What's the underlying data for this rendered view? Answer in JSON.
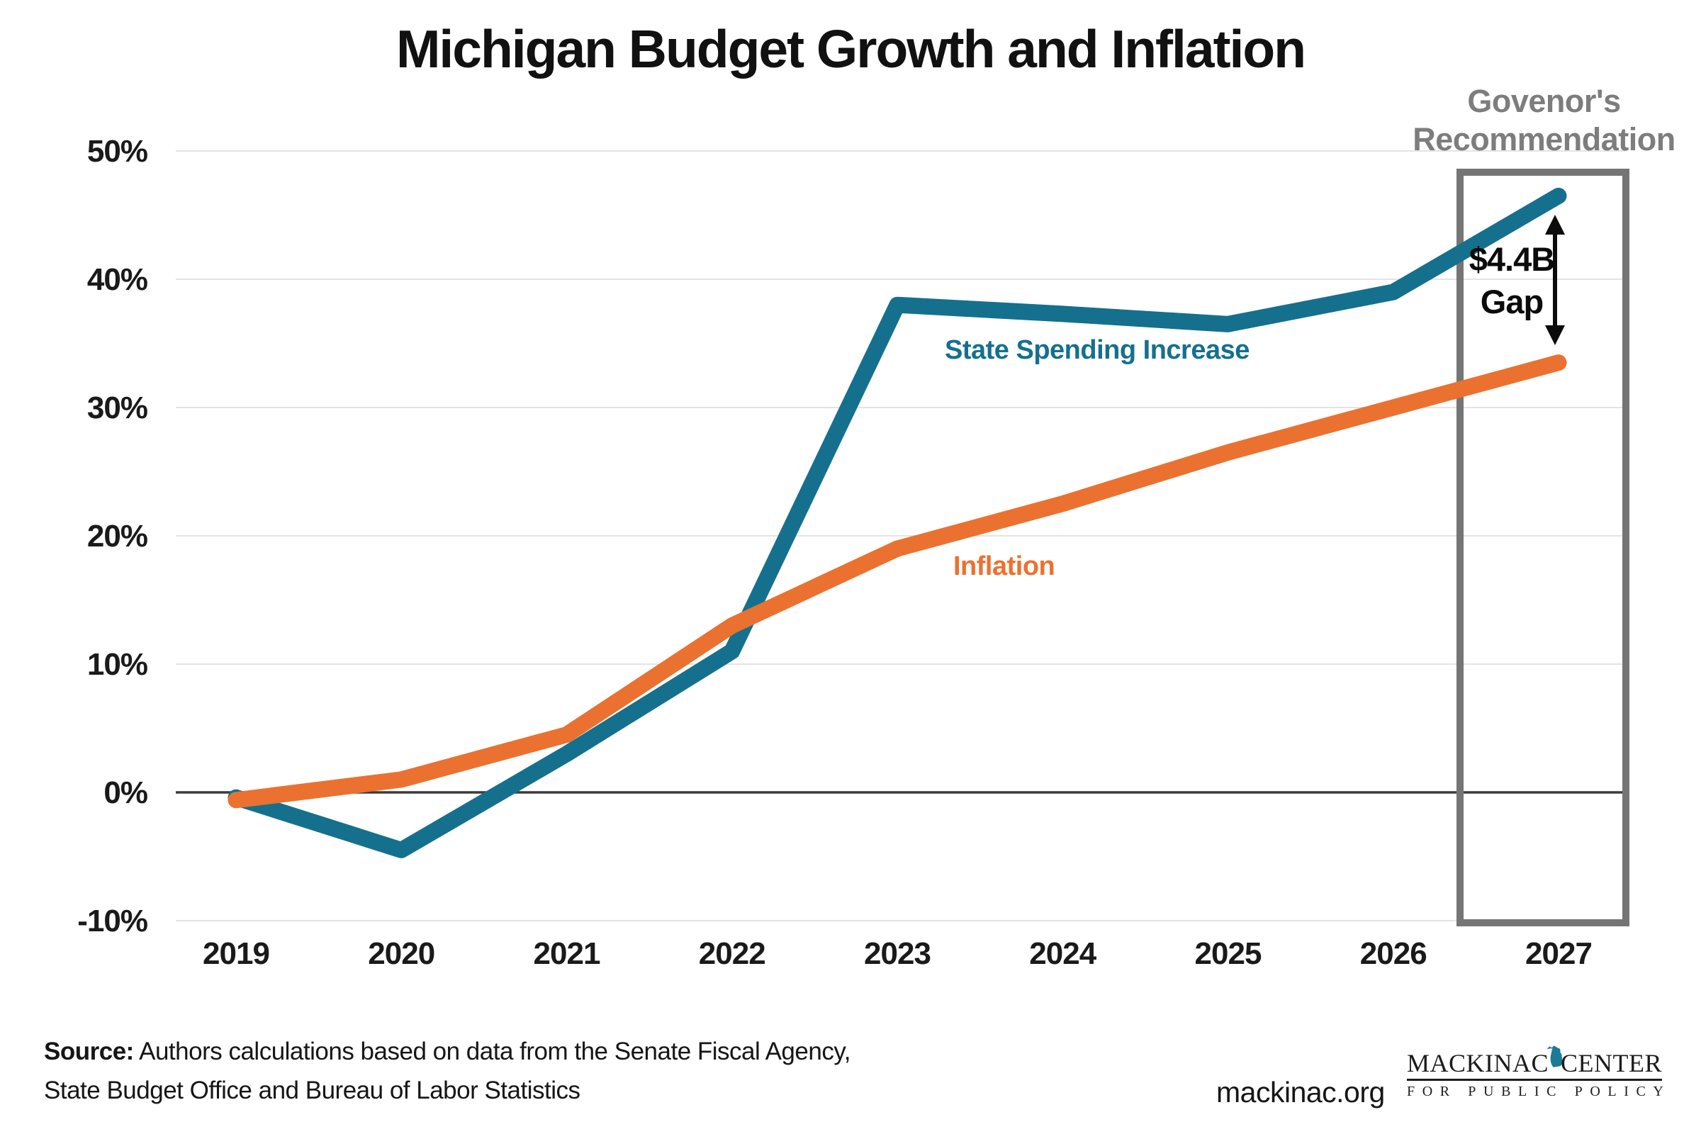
{
  "title": "Michigan Budget Growth and Inflation",
  "chart_data": {
    "type": "line",
    "x": [
      2019,
      2020,
      2021,
      2022,
      2023,
      2024,
      2025,
      2026,
      2027
    ],
    "series": [
      {
        "name": "State Spending Increase",
        "color": "#15708E",
        "values": [
          -0.4,
          -4.5,
          3.0,
          11.0,
          38.0,
          37.3,
          36.5,
          39.0,
          46.5
        ]
      },
      {
        "name": "Inflation",
        "color": "#EB7130",
        "values": [
          -0.6,
          1.0,
          4.5,
          13.0,
          19.0,
          22.5,
          26.5,
          30.0,
          33.5
        ]
      }
    ],
    "title": "Michigan Budget Growth and Inflation",
    "xlabel": "",
    "ylabel": "",
    "ylim": [
      -10,
      50
    ],
    "yticks": [
      50,
      40,
      30,
      20,
      10,
      0,
      -10
    ],
    "ytick_suffix": "%",
    "grid": true,
    "legend_position": "inline-labels",
    "annotations": {
      "highlight_box": {
        "label_line1": "Govenor's",
        "label_line2": "Recommendation",
        "year": 2027
      },
      "gap": {
        "line1": "$4.4B",
        "line2": "Gap",
        "between": [
          "State Spending Increase",
          "Inflation"
        ],
        "at_year": 2027
      }
    }
  },
  "series_labels": {
    "spending": "State Spending Increase",
    "inflation": "Inflation"
  },
  "governor": {
    "line1": "Govenor's",
    "line2": "Recommendation"
  },
  "gap": {
    "line1": "$4.4B",
    "line2": "Gap"
  },
  "source": {
    "prefix": "Source:",
    "line1": "  Authors calculations based on data from the Senate Fiscal Agency,",
    "line2": "State Budget Office and Bureau of Labor Statistics"
  },
  "footer": {
    "website": "mackinac.org",
    "logo": {
      "word_left": "MACKINAC",
      "word_right": "CENTER",
      "tagline": "FOR PUBLIC POLICY"
    }
  },
  "colors": {
    "spending": "#15708E",
    "inflation": "#EB7130",
    "box_stroke": "#757575",
    "governor_text": "#7D7D7D",
    "gridline": "#E4E4E4",
    "zero_axis": "#3B3B3B",
    "text": "#1A1A1A",
    "michigan_icon": "#1B7A96"
  }
}
